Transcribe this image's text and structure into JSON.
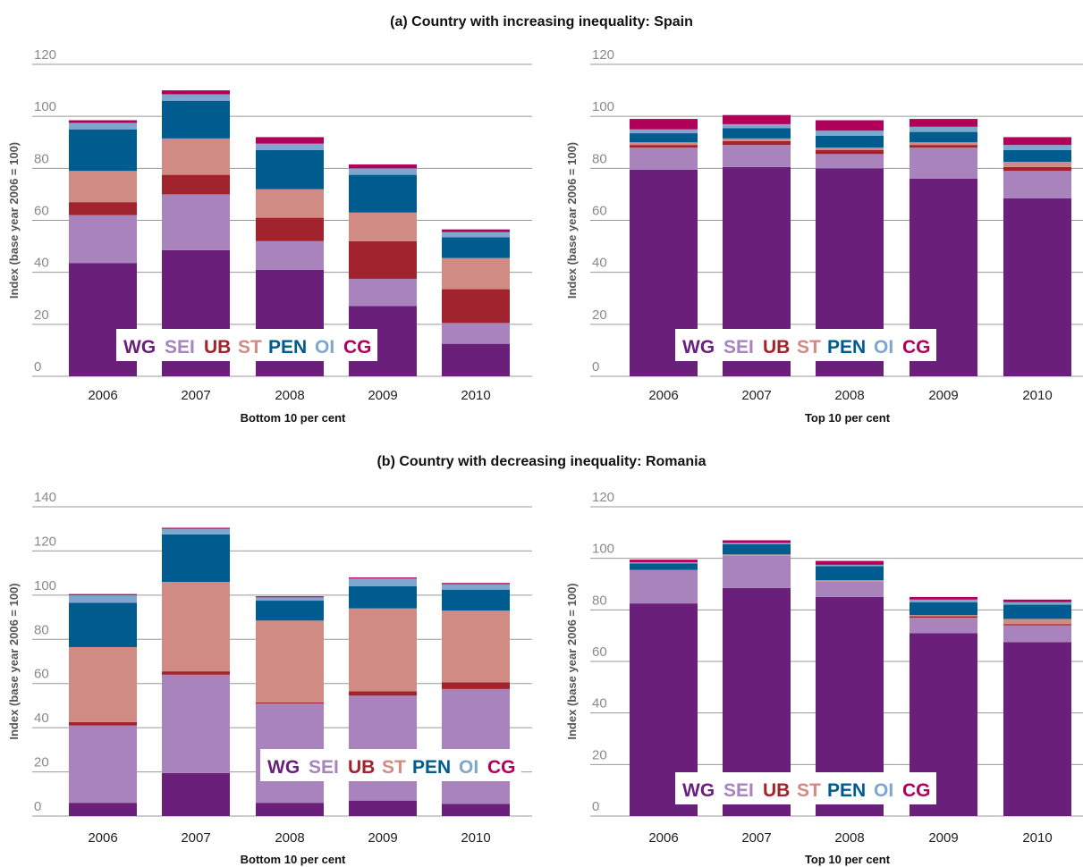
{
  "section_titles": {
    "a": "(a) Country with increasing inequality: Spain",
    "b": "(b) Country with decreasing inequality: Romania"
  },
  "legend": [
    {
      "key": "WG",
      "color": "#6a1f7a"
    },
    {
      "key": "SEI",
      "color": "#a883bc"
    },
    {
      "key": "UB",
      "color": "#a0232d"
    },
    {
      "key": "ST",
      "color": "#d08c84"
    },
    {
      "key": "PEN",
      "color": "#005b8f"
    },
    {
      "key": "OI",
      "color": "#7fa6cc"
    },
    {
      "key": "CG",
      "color": "#b0005a"
    }
  ],
  "chart_data": [
    {
      "type": "bar",
      "stacked": true,
      "panel": "(a) Spain",
      "categories": [
        "2006",
        "2007",
        "2008",
        "2009",
        "2010"
      ],
      "xlabel": "Bottom 10 per cent",
      "ylabel": "Index (base year 2006 = 100)",
      "ylim": [
        0,
        120
      ],
      "yticks": [
        0,
        20,
        40,
        60,
        80,
        100,
        120
      ],
      "grid": true,
      "series": [
        {
          "name": "WG",
          "values": [
            43.5,
            48.5,
            41,
            27,
            12.5
          ]
        },
        {
          "name": "SEI",
          "values": [
            18.5,
            21.5,
            11,
            10.5,
            8
          ]
        },
        {
          "name": "UB",
          "values": [
            5,
            7.5,
            9,
            14.5,
            13
          ]
        },
        {
          "name": "ST",
          "values": [
            12,
            14,
            11,
            11,
            12
          ]
        },
        {
          "name": "PEN",
          "values": [
            16,
            14.5,
            15,
            14.5,
            8
          ]
        },
        {
          "name": "OI",
          "values": [
            2.5,
            2.5,
            2.5,
            2.5,
            2
          ]
        },
        {
          "name": "CG",
          "values": [
            1,
            1.5,
            2.5,
            1.5,
            1
          ]
        }
      ]
    },
    {
      "type": "bar",
      "stacked": true,
      "panel": "(a) Spain",
      "categories": [
        "2006",
        "2007",
        "2008",
        "2009",
        "2010"
      ],
      "xlabel": "Top 10 per cent",
      "ylabel": "Index (base year 2006 = 100)",
      "ylim": [
        0,
        120
      ],
      "yticks": [
        0,
        20,
        40,
        60,
        80,
        100,
        120
      ],
      "grid": true,
      "series": [
        {
          "name": "WG",
          "values": [
            79.5,
            80.5,
            80,
            76,
            68.5
          ]
        },
        {
          "name": "SEI",
          "values": [
            8.5,
            8.5,
            5.5,
            12,
            10.5
          ]
        },
        {
          "name": "UB",
          "values": [
            1,
            1.5,
            1.5,
            1,
            1.5
          ]
        },
        {
          "name": "ST",
          "values": [
            1,
            1,
            1,
            1,
            2
          ]
        },
        {
          "name": "PEN",
          "values": [
            3.5,
            4,
            4.5,
            4,
            4.5
          ]
        },
        {
          "name": "OI",
          "values": [
            1.5,
            1.5,
            2,
            2,
            2
          ]
        },
        {
          "name": "CG",
          "values": [
            4,
            3.5,
            4,
            3,
            3
          ]
        }
      ]
    },
    {
      "type": "bar",
      "stacked": true,
      "panel": "(b) Romania",
      "categories": [
        "2006",
        "2007",
        "2008",
        "2009",
        "2010"
      ],
      "xlabel": "Bottom 10 per cent",
      "ylabel": "Index (base year 2006 = 100)",
      "ylim": [
        0,
        140
      ],
      "yticks": [
        0,
        20,
        40,
        60,
        80,
        100,
        120,
        140
      ],
      "grid": true,
      "series": [
        {
          "name": "WG",
          "values": [
            6,
            19.5,
            6,
            7,
            5.5
          ]
        },
        {
          "name": "SEI",
          "values": [
            35,
            44.5,
            45,
            47.5,
            52
          ]
        },
        {
          "name": "UB",
          "values": [
            1.5,
            1.5,
            0.5,
            2,
            3
          ]
        },
        {
          "name": "ST",
          "values": [
            34,
            40.5,
            37,
            37.5,
            32.5
          ]
        },
        {
          "name": "PEN",
          "values": [
            20,
            21.5,
            9,
            10,
            9.5
          ]
        },
        {
          "name": "OI",
          "values": [
            3.5,
            2.5,
            1.5,
            3.5,
            2.5
          ]
        },
        {
          "name": "CG",
          "values": [
            0.5,
            0.5,
            0.5,
            0.5,
            0.5
          ]
        }
      ]
    },
    {
      "type": "bar",
      "stacked": true,
      "panel": "(b) Romania",
      "categories": [
        "2006",
        "2007",
        "2008",
        "2009",
        "2010"
      ],
      "xlabel": "Top 10 per cent",
      "ylabel": "Index (base year 2006 = 100)",
      "ylim": [
        0,
        120
      ],
      "yticks": [
        0,
        20,
        40,
        60,
        80,
        100,
        120
      ],
      "grid": true,
      "series": [
        {
          "name": "WG",
          "values": [
            82.5,
            88.5,
            85,
            71,
            67.5
          ]
        },
        {
          "name": "SEI",
          "values": [
            13,
            12.5,
            6,
            6,
            6.5
          ]
        },
        {
          "name": "UB",
          "values": [
            0,
            0,
            0,
            0.5,
            0.5
          ]
        },
        {
          "name": "ST",
          "values": [
            0,
            0.5,
            0.5,
            0.5,
            2
          ]
        },
        {
          "name": "PEN",
          "values": [
            2.5,
            4,
            5.5,
            5,
            5.5
          ]
        },
        {
          "name": "OI",
          "values": [
            0.5,
            0.5,
            0.5,
            1,
            1
          ]
        },
        {
          "name": "CG",
          "values": [
            1,
            1,
            1.5,
            1,
            1
          ]
        }
      ]
    }
  ]
}
